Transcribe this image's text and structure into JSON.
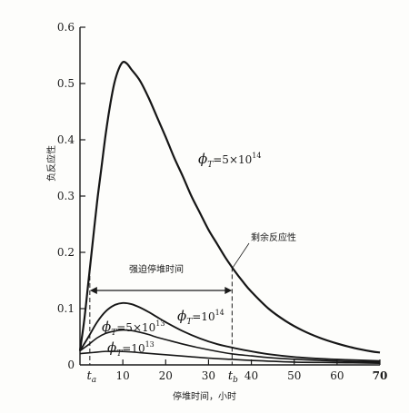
{
  "chart_data": {
    "type": "line",
    "xlabel": "停堆时间，小时",
    "ylabel": "负反应性",
    "xlim": [
      0,
      70
    ],
    "ylim": [
      0,
      0.6
    ],
    "x_ticks": [
      "10",
      "20",
      "30",
      "40",
      "50",
      "60",
      "70"
    ],
    "y_ticks": [
      "0",
      "0.1",
      "0.2",
      "0.3",
      "0.4",
      "0.5",
      "0.6"
    ],
    "special_x_labels": {
      "ta": "t_a",
      "tb": "t_b"
    },
    "t_a": 2.3,
    "t_b": 35.5,
    "series": [
      {
        "name": "ϕT=5×10^14",
        "label": {
          "phi": "ϕ",
          "sub": "T",
          "rest": "=5×10",
          "sup": "14"
        },
        "x": [
          0,
          1,
          2,
          3,
          4,
          5,
          6,
          7,
          8,
          9,
          10,
          11,
          12,
          14,
          16,
          18,
          20,
          22,
          24,
          26,
          28,
          30,
          32,
          34,
          36,
          38,
          40,
          44,
          48,
          52,
          56,
          60,
          64,
          68,
          70
        ],
        "values": [
          0.025,
          0.08,
          0.15,
          0.22,
          0.29,
          0.35,
          0.41,
          0.46,
          0.5,
          0.525,
          0.538,
          0.535,
          0.525,
          0.505,
          0.475,
          0.44,
          0.405,
          0.368,
          0.335,
          0.3,
          0.27,
          0.24,
          0.215,
          0.19,
          0.168,
          0.148,
          0.13,
          0.1,
          0.078,
          0.061,
          0.048,
          0.038,
          0.03,
          0.024,
          0.022
        ]
      },
      {
        "name": "ϕT=10^14",
        "label": {
          "phi": "ϕ",
          "sub": "T",
          "rest": "=10",
          "sup": "14"
        },
        "x": [
          0,
          2,
          4,
          6,
          8,
          10,
          12,
          14,
          16,
          18,
          20,
          24,
          28,
          32,
          36,
          40,
          44,
          50,
          56,
          62,
          70
        ],
        "values": [
          0.025,
          0.05,
          0.076,
          0.095,
          0.106,
          0.11,
          0.108,
          0.102,
          0.094,
          0.085,
          0.076,
          0.06,
          0.047,
          0.037,
          0.03,
          0.024,
          0.019,
          0.014,
          0.011,
          0.009,
          0.007
        ]
      },
      {
        "name": "ϕT=5×10^13",
        "label": {
          "phi": "ϕ",
          "sub": "T",
          "rest": "=5×10",
          "sup": "13"
        },
        "x": [
          0,
          2,
          4,
          6,
          8,
          10,
          12,
          14,
          16,
          18,
          20,
          24,
          28,
          32,
          36,
          40,
          44,
          50,
          56,
          62,
          70
        ],
        "values": [
          0.025,
          0.036,
          0.048,
          0.056,
          0.06,
          0.062,
          0.061,
          0.058,
          0.054,
          0.049,
          0.045,
          0.037,
          0.03,
          0.024,
          0.019,
          0.016,
          0.013,
          0.01,
          0.008,
          0.006,
          0.005
        ]
      },
      {
        "name": "ϕT=10^13",
        "label": {
          "phi": "ϕ",
          "sub": "T",
          "rest": "=10",
          "sup": "13"
        },
        "x": [
          0,
          3,
          6,
          9,
          12,
          15,
          20,
          25,
          30,
          35,
          40,
          50,
          60,
          70
        ],
        "values": [
          0.02,
          0.022,
          0.024,
          0.024,
          0.023,
          0.021,
          0.018,
          0.015,
          0.012,
          0.01,
          0.008,
          0.005,
          0.004,
          0.003
        ]
      }
    ],
    "annotations": {
      "interval_label": "强迫停堆时间",
      "residual_label": "剩余反应性"
    }
  }
}
